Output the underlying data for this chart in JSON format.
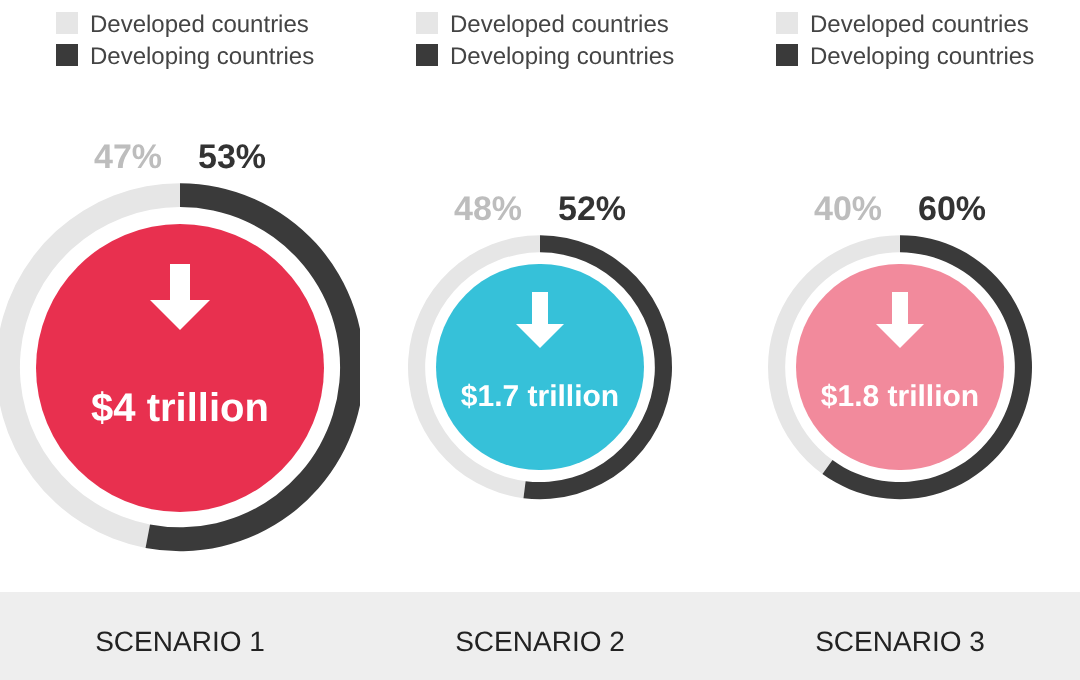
{
  "chart_data": [
    {
      "type": "donut",
      "categories": [
        "Developed countries",
        "Developing countries"
      ],
      "values": [
        47,
        53
      ],
      "colors": [
        "#e6e6e6",
        "#3a3a3a"
      ],
      "value_labels": [
        "47%",
        "53%"
      ],
      "annotations": [
        "$4 trillion"
      ],
      "title": "SCENARIO 1",
      "legend": "top"
    },
    {
      "type": "donut",
      "categories": [
        "Developed countries",
        "Developing countries"
      ],
      "values": [
        48,
        52
      ],
      "colors": [
        "#e6e6e6",
        "#3a3a3a"
      ],
      "value_labels": [
        "48%",
        "52%"
      ],
      "annotations": [
        "$1.7 trillion"
      ],
      "title": "SCENARIO 2",
      "legend": "top"
    },
    {
      "type": "donut",
      "categories": [
        "Developed countries",
        "Developing countries"
      ],
      "values": [
        40,
        60
      ],
      "colors": [
        "#e6e6e6",
        "#3a3a3a"
      ],
      "value_labels": [
        "40%",
        "60%"
      ],
      "annotations": [
        "$1.8 trillion"
      ],
      "title": "SCENARIO 3",
      "legend": "top"
    }
  ]
}
